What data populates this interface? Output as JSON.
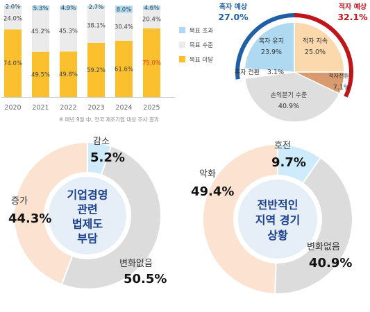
{
  "chart_data": [
    {
      "type": "bar",
      "stacked": true,
      "categories": [
        "2020",
        "2021",
        "2022",
        "2023",
        "2024",
        "2025"
      ],
      "series": [
        {
          "name": "목표 미달",
          "values": [
            74.0,
            49.5,
            49.8,
            59.2,
            61.6,
            75.0
          ],
          "labels": [
            "74.0%",
            "49.5%",
            "49.8%",
            "59.2%",
            "61.6%",
            "75.0%"
          ]
        },
        {
          "name": "목표 수준",
          "values": [
            24.0,
            45.2,
            45.3,
            38.1,
            30.4,
            20.4
          ],
          "labels": [
            "24.0%",
            "45.2%",
            "45.3%",
            "38.1%",
            "30.4%",
            "20.4%"
          ]
        },
        {
          "name": "목표 초과",
          "values": [
            2.0,
            5.3,
            4.9,
            2.7,
            8.0,
            4.6
          ],
          "labels": [
            "2.0%",
            "5.3%",
            "4.9%",
            "2.7%",
            "8.0%",
            "4.6%"
          ]
        }
      ],
      "colors": {
        "miss": "#FBC02D",
        "meet": "#EBEBEB",
        "exceed": "#AED9F0",
        "highlight": "#E8320E"
      },
      "legend_position": "right",
      "footnote": "※ 매년 9월 中, 전국 제조기업 대상 조사 결과"
    },
    {
      "type": "pie",
      "slices": [
        {
          "name": "흑자 유지",
          "value": 23.9,
          "label": "23.9%",
          "color": "#AED9F0"
        },
        {
          "name": "적자 지속",
          "value": 25.0,
          "label": "25.0%",
          "color": "#FCD9AC"
        },
        {
          "name": "적자전환",
          "value": 7.1,
          "label": "7.1%",
          "color": "#D99A6E"
        },
        {
          "name": "손익분기 수준",
          "value": 40.9,
          "label": "40.9%",
          "color": "#DEDEDE"
        },
        {
          "name": "흑자 전환",
          "value": 3.1,
          "label": "3.1%",
          "color": "#FFFFFF"
        }
      ],
      "outer_groups": [
        {
          "name": "흑자 예상",
          "value": "27.0%",
          "color": "#1F5FA6"
        },
        {
          "name": "적자 예상",
          "value": "32.1%",
          "color": "#C0141B"
        }
      ]
    },
    {
      "type": "pie",
      "donut": true,
      "center": [
        "기업경영",
        "관련",
        "법제도",
        "부담"
      ],
      "slices": [
        {
          "name": "감소",
          "value": 5.2,
          "label": "5.2%",
          "color": "#CDEBFA"
        },
        {
          "name": "변화없음",
          "value": 50.5,
          "label": "50.5%",
          "color": "#DCDCDC"
        },
        {
          "name": "증가",
          "value": 44.3,
          "label": "44.3%",
          "color": "#FCE3D1"
        }
      ]
    },
    {
      "type": "pie",
      "donut": true,
      "center": [
        "전반적인",
        "지역 경기",
        "상황"
      ],
      "slices": [
        {
          "name": "호전",
          "value": 9.7,
          "label": "9.7%",
          "color": "#CDEBFA"
        },
        {
          "name": "변화없음",
          "value": 40.9,
          "label": "40.9%",
          "color": "#DCDCDC"
        },
        {
          "name": "악화",
          "value": 49.4,
          "label": "49.4%",
          "color": "#FCE3D1"
        }
      ]
    }
  ]
}
